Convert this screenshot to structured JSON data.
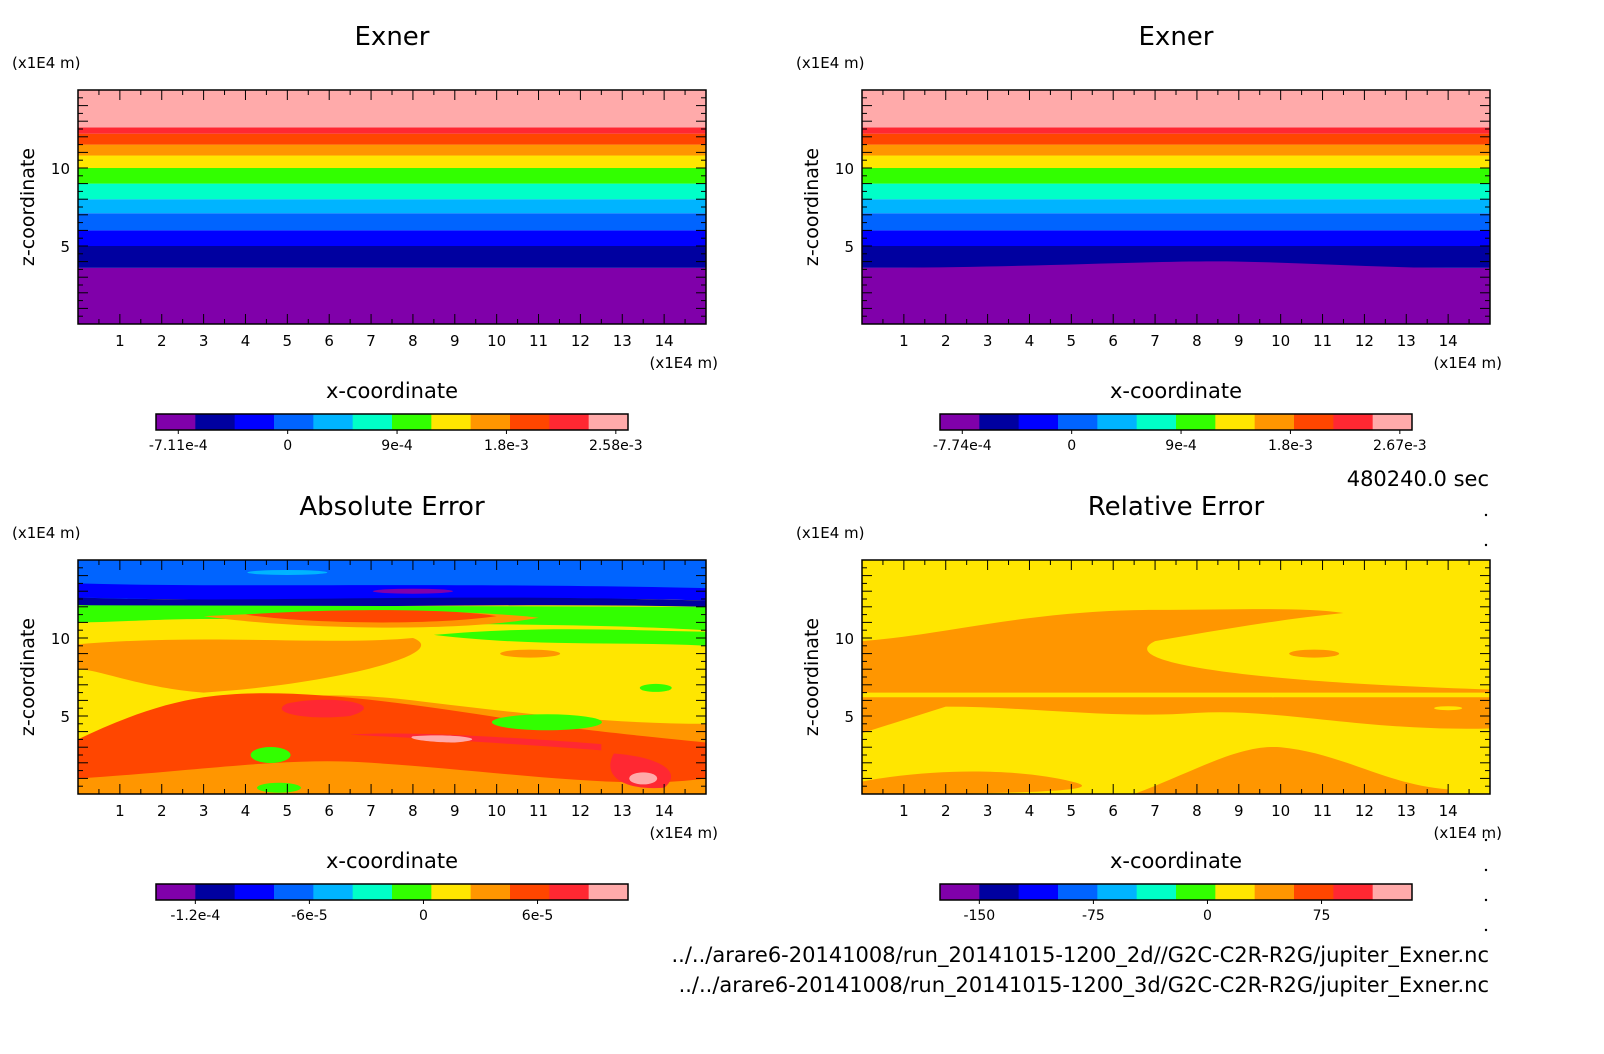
{
  "time_label": "480240.0 sec",
  "file_paths": [
    "../../arare6-20141008/run_20141015-1200_2d//G2C-C2R-R2G/jupiter_Exner.nc",
    "../../arare6-20141008/run_20141015-1200_3d/G2C-C2R-R2G/jupiter_Exner.nc"
  ],
  "colors": [
    "#8000aa",
    "#0000a0",
    "#0000ff",
    "#0064ff",
    "#00b4ff",
    "#00ffc8",
    "#32ff00",
    "#ffe600",
    "#ff9600",
    "#ff4600",
    "#ff2832",
    "#ffaaaa"
  ],
  "chart_data": [
    {
      "type": "heatmap",
      "title": "Exner",
      "xlabel": "x-coordinate",
      "ylabel": "z-coordinate",
      "x_unit": "(x1E4 m)",
      "y_unit": "(x1E4 m)",
      "x_ticks": [
        "1",
        "2",
        "3",
        "4",
        "5",
        "6",
        "7",
        "8",
        "9",
        "10",
        "11",
        "12",
        "13",
        "14"
      ],
      "y_ticks": [
        "5",
        "10"
      ],
      "xlim": [
        0,
        15
      ],
      "ylim": [
        0,
        15
      ],
      "colorbar_labels": [
        "-7.11e-4",
        "0",
        "9e-4",
        "1.8e-3",
        "2.58e-3"
      ],
      "colorbar_n": 12
    },
    {
      "type": "heatmap",
      "title": "Exner",
      "xlabel": "x-coordinate",
      "ylabel": "z-coordinate",
      "x_unit": "(x1E4 m)",
      "y_unit": "(x1E4 m)",
      "x_ticks": [
        "1",
        "2",
        "3",
        "4",
        "5",
        "6",
        "7",
        "8",
        "9",
        "10",
        "11",
        "12",
        "13",
        "14"
      ],
      "y_ticks": [
        "5",
        "10"
      ],
      "xlim": [
        0,
        15
      ],
      "ylim": [
        0,
        15
      ],
      "colorbar_labels": [
        "-7.74e-4",
        "0",
        "9e-4",
        "1.8e-3",
        "2.67e-3"
      ],
      "colorbar_n": 12
    },
    {
      "type": "heatmap",
      "title": "Absolute Error",
      "xlabel": "x-coordinate",
      "ylabel": "z-coordinate",
      "x_unit": "(x1E4 m)",
      "y_unit": "(x1E4 m)",
      "x_ticks": [
        "1",
        "2",
        "3",
        "4",
        "5",
        "6",
        "7",
        "8",
        "9",
        "10",
        "11",
        "12",
        "13",
        "14"
      ],
      "y_ticks": [
        "5",
        "10"
      ],
      "xlim": [
        0,
        15
      ],
      "ylim": [
        0,
        15
      ],
      "colorbar_labels": [
        "-1.2e-4",
        "-6e-5",
        "0",
        "6e-5"
      ],
      "colorbar_n": 12
    },
    {
      "type": "heatmap",
      "title": "Relative Error",
      "xlabel": "x-coordinate",
      "ylabel": "z-coordinate",
      "x_unit": "(x1E4 m)",
      "y_unit": "(x1E4 m)",
      "x_ticks": [
        "1",
        "2",
        "3",
        "4",
        "5",
        "6",
        "7",
        "8",
        "9",
        "10",
        "11",
        "12",
        "13",
        "14"
      ],
      "y_ticks": [
        "5",
        "10"
      ],
      "xlim": [
        0,
        15
      ],
      "ylim": [
        0,
        15
      ],
      "colorbar_labels": [
        "-150",
        "-75",
        "0",
        "75"
      ],
      "colorbar_n": 12
    }
  ]
}
